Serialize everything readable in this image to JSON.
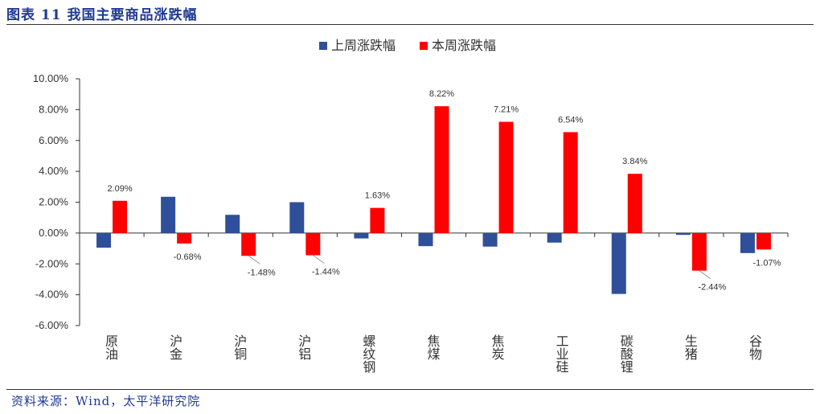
{
  "figure": {
    "title": "图表 11  我国主要商品涨跌幅",
    "source": "资料来源：Wind，太平洋研究院"
  },
  "colors": {
    "series_prev": "#2f4f9a",
    "series_curr": "#ff0000"
  },
  "chart_data": {
    "type": "bar",
    "categories": [
      "原油",
      "沪金",
      "沪铜",
      "沪铝",
      "螺纹钢",
      "焦煤",
      "焦炭",
      "工业硅",
      "碳酸锂",
      "生猪",
      "谷物"
    ],
    "series": [
      {
        "name": "上周涨跌幅",
        "values": [
          -0.95,
          2.35,
          1.18,
          2.0,
          -0.35,
          -0.85,
          -0.88,
          -0.62,
          -3.95,
          -0.12,
          -1.3
        ]
      },
      {
        "name": "本周涨跌幅",
        "values": [
          2.09,
          -0.68,
          -1.48,
          -1.44,
          1.63,
          8.22,
          7.21,
          6.54,
          3.84,
          -2.44,
          -1.07
        ]
      }
    ],
    "data_labels": [
      "2.09%",
      "-0.68%",
      "-1.48%",
      "-1.44%",
      "1.63%",
      "8.22%",
      "7.21%",
      "6.54%",
      "3.84%",
      "-2.44%",
      "-1.07%"
    ],
    "y_ticks": [
      "10.00%",
      "8.00%",
      "6.00%",
      "4.00%",
      "2.00%",
      "0.00%",
      "-2.00%",
      "-4.00%",
      "-6.00%"
    ],
    "ylim": [
      -6,
      10
    ],
    "y_unit": "%",
    "grid": false,
    "legend_position": "top-center"
  }
}
